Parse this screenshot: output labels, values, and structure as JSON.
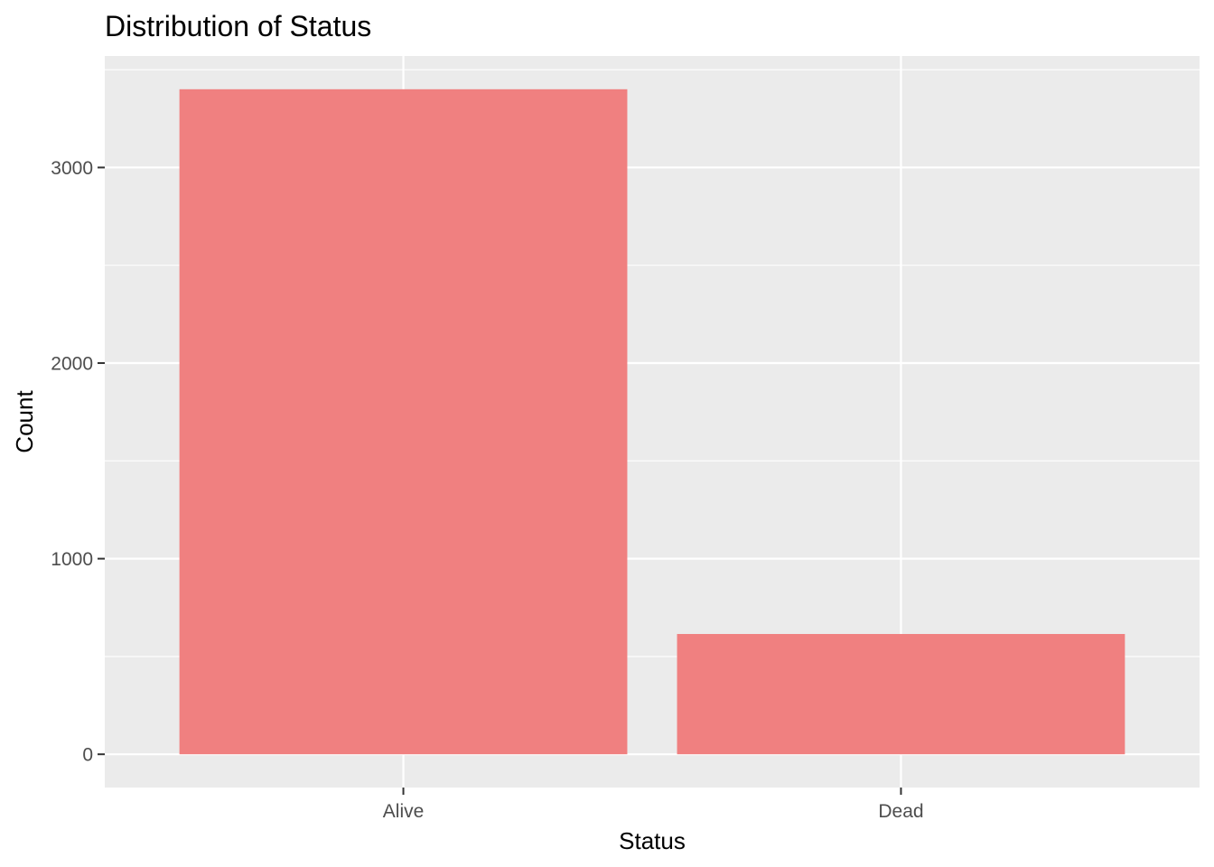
{
  "chart_data": {
    "type": "bar",
    "title": "Distribution of Status",
    "xlabel": "Status",
    "ylabel": "Count",
    "categories": [
      "Alive",
      "Dead"
    ],
    "values": [
      3400,
      615
    ],
    "ylim": [
      -170,
      3570
    ],
    "yticks": [
      0,
      1000,
      2000,
      3000
    ],
    "ytick_labels": [
      "0",
      "1000",
      "2000",
      "3000"
    ],
    "grid": true,
    "legend": "none",
    "colors": {
      "bar": "#F08080",
      "panel": "#EBEBEB",
      "grid": "#FFFFFF",
      "tick": "#333333",
      "tick_label": "#4D4D4D",
      "text": "#000000"
    }
  }
}
